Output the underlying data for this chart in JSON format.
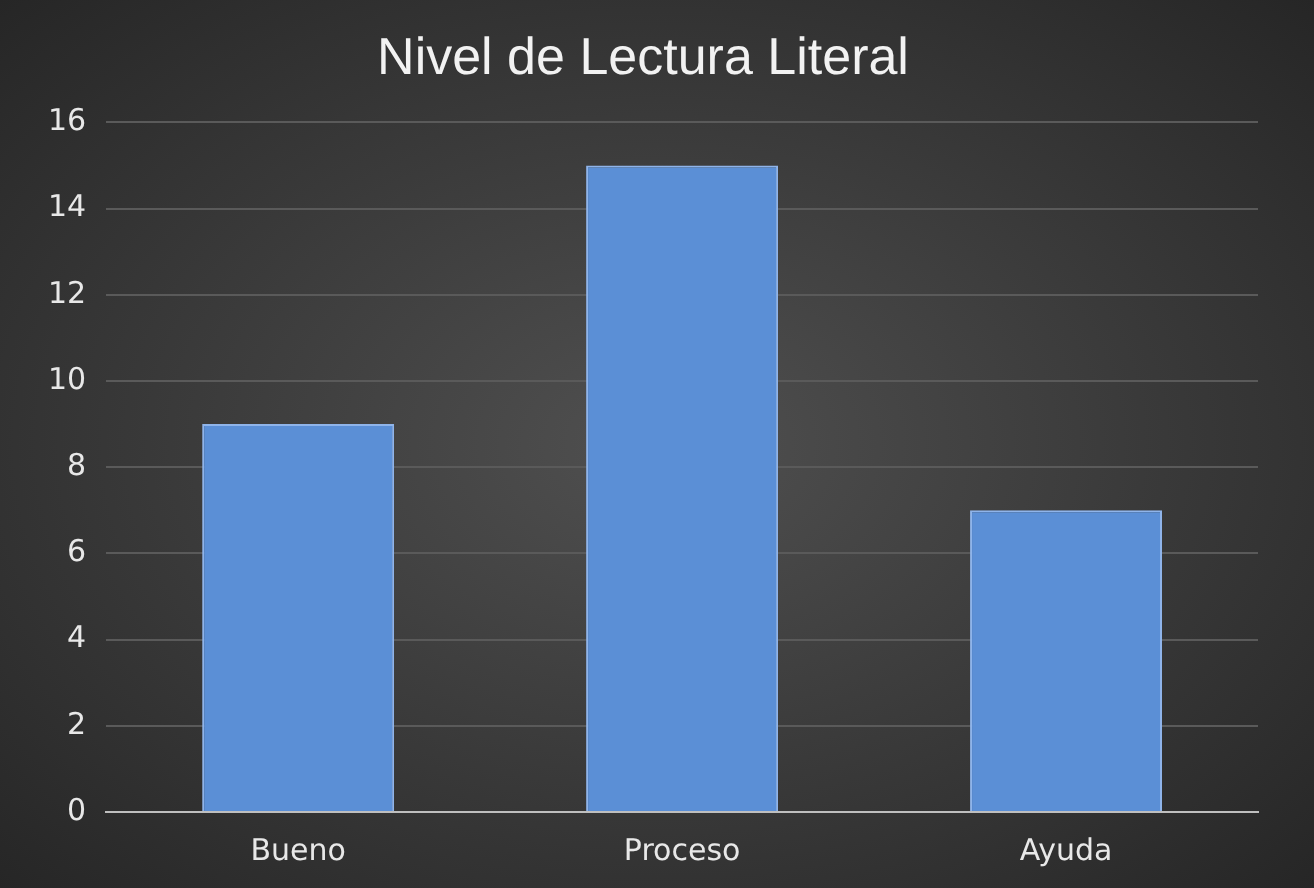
{
  "chart_data": {
    "type": "bar",
    "title": "Nivel de Lectura Literal",
    "categories": [
      "Bueno",
      "Proceso",
      "Ayuda"
    ],
    "values": [
      9,
      15,
      7
    ],
    "color": "#5b8fd6",
    "ylim": [
      0,
      16
    ],
    "yticks": [
      0,
      2,
      4,
      6,
      8,
      10,
      12,
      14,
      16
    ],
    "grid": "y"
  }
}
